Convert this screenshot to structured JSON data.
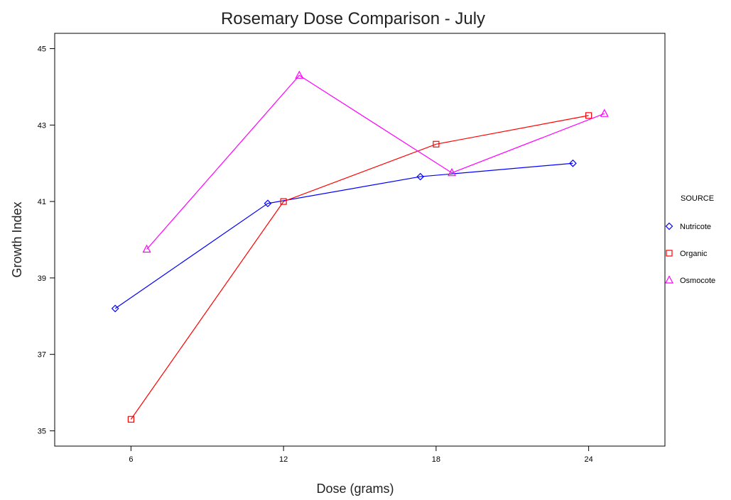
{
  "chart_data": {
    "type": "line",
    "title": "Rosemary Dose Comparison - July",
    "xlabel": "Dose (grams)",
    "ylabel": "Growth Index",
    "x_ticks": [
      6,
      12,
      18,
      24
    ],
    "y_ticks": [
      35,
      37,
      39,
      41,
      43,
      45
    ],
    "xlim": [
      3,
      27
    ],
    "ylim": [
      34.6,
      45.4
    ],
    "grid": false,
    "legend_position": "right",
    "legend_title": "SOURCE",
    "series": [
      {
        "name": "Nutricote",
        "color": "#0000ff",
        "marker": "diamond",
        "x": [
          6,
          12,
          18,
          24
        ],
        "y": [
          38.2,
          40.95,
          41.65,
          42.0
        ]
      },
      {
        "name": "Organic",
        "color": "#ff0000",
        "marker": "square",
        "x": [
          6,
          12,
          18,
          24
        ],
        "y": [
          35.3,
          41.0,
          42.5,
          43.25
        ]
      },
      {
        "name": "Osmocote",
        "color": "#ff00ff",
        "marker": "triangle",
        "x": [
          6,
          12,
          18,
          24
        ],
        "y": [
          39.75,
          44.3,
          41.75,
          43.3
        ]
      }
    ]
  }
}
